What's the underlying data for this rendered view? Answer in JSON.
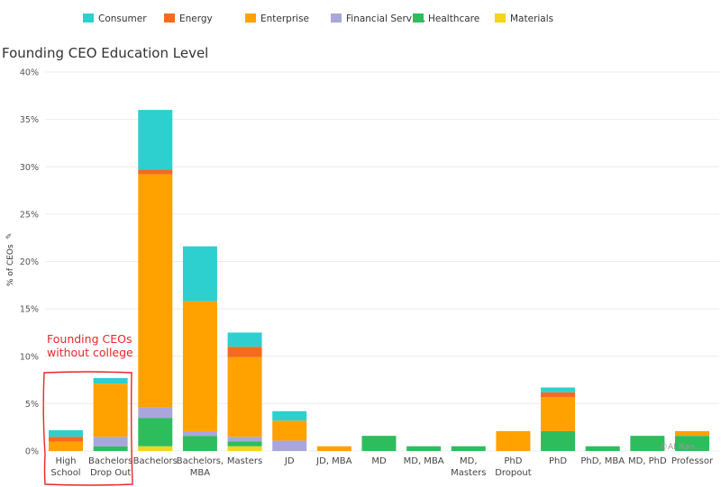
{
  "chart_data": {
    "type": "bar",
    "stacked": true,
    "title": "Founding CEO Education Level",
    "ylabel": "% of CEOs",
    "xlabel": "",
    "ylim": [
      0,
      40
    ],
    "yticks": [
      0,
      5,
      10,
      15,
      20,
      25,
      30,
      35,
      40
    ],
    "ytick_labels": [
      "0%",
      "5%",
      "10%",
      "15%",
      "20%",
      "25%",
      "30%",
      "35%",
      "40%"
    ],
    "grid": true,
    "legend_position": "top",
    "categories": [
      [
        "High",
        "School"
      ],
      [
        "Bachelors",
        "Drop Out"
      ],
      [
        "Bachelors"
      ],
      [
        "Bachelors,",
        "MBA"
      ],
      [
        "Masters"
      ],
      [
        "JD"
      ],
      [
        "JD, MBA"
      ],
      [
        "MD"
      ],
      [
        "MD, MBA"
      ],
      [
        "MD,",
        "Masters"
      ],
      [
        "PhD",
        "Dropout"
      ],
      [
        "PhD"
      ],
      [
        "PhD, MBA"
      ],
      [
        "MD, PhD"
      ],
      [
        "Professor"
      ]
    ],
    "legend_labels": [
      "Consumer",
      "Energy",
      "Enterprise",
      "Financial Servic..",
      "Healthcare",
      "Materials"
    ],
    "series": [
      {
        "name": "Materials",
        "color": "#f5d41a",
        "values": [
          0,
          0,
          0.5,
          0,
          0.5,
          0,
          0,
          0,
          0,
          0,
          0,
          0,
          0,
          0,
          0
        ]
      },
      {
        "name": "Healthcare",
        "color": "#2dbd5c",
        "values": [
          0,
          0.5,
          3.0,
          1.6,
          0.5,
          0,
          0,
          1.6,
          0.5,
          0.5,
          0,
          2.1,
          0.5,
          1.6,
          1.6
        ]
      },
      {
        "name": "Financial Services",
        "color": "#a9a6dc",
        "values": [
          0,
          1.0,
          1.1,
          0.5,
          0.5,
          1.1,
          0,
          0,
          0,
          0,
          0,
          0,
          0,
          0,
          0
        ]
      },
      {
        "name": "Enterprise",
        "color": "#ffa200",
        "values": [
          1.0,
          5.6,
          24.6,
          13.7,
          8.4,
          2.1,
          0.5,
          0,
          0,
          0,
          2.1,
          3.6,
          0,
          0,
          0.5
        ]
      },
      {
        "name": "Energy",
        "color": "#f86a1d",
        "values": [
          0.5,
          0,
          0.5,
          0,
          1.1,
          0,
          0,
          0,
          0,
          0,
          0,
          0.5,
          0,
          0,
          0
        ]
      },
      {
        "name": "Consumer",
        "color": "#2ecfcf",
        "values": [
          0.7,
          0.6,
          6.3,
          5.8,
          1.5,
          1.0,
          0,
          0,
          0,
          0,
          0,
          0.5,
          0,
          0,
          0
        ]
      }
    ],
    "legend_colors": [
      "#2ecfcf",
      "#f86a1d",
      "#ffa200",
      "#a9a6dc",
      "#2dbd5c",
      "#f5d41a"
    ],
    "annotation": {
      "text": [
        "Founding CEOs",
        "without college"
      ],
      "color": "#e8262a",
      "highlights": [
        "High School",
        "Bachelors Drop Out"
      ]
    },
    "watermark": "©AI Nan..."
  }
}
